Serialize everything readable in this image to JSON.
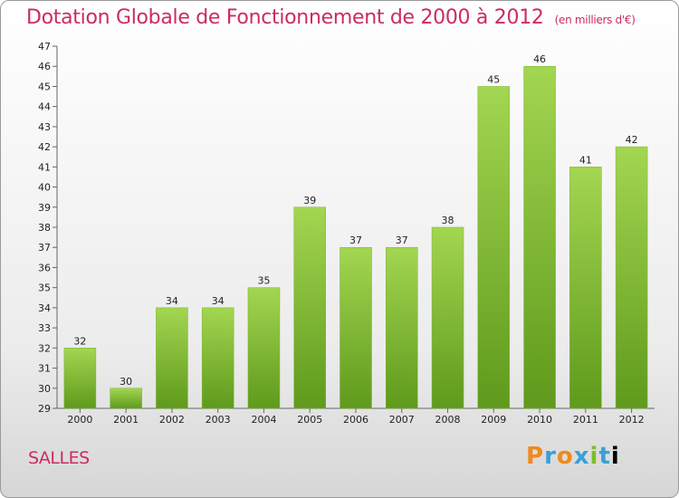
{
  "chart_data": {
    "type": "bar",
    "title": "Dotation Globale de Fonctionnement de 2000 à 2012",
    "subtitle": "(en milliers d'€)",
    "categories": [
      "2000",
      "2001",
      "2002",
      "2003",
      "2004",
      "2005",
      "2006",
      "2007",
      "2008",
      "2009",
      "2010",
      "2011",
      "2012"
    ],
    "values": [
      32,
      30,
      34,
      34,
      35,
      39,
      37,
      37,
      38,
      45,
      46,
      41,
      42
    ],
    "ylim": [
      29,
      47
    ],
    "yticks": [
      29,
      30,
      31,
      32,
      33,
      34,
      35,
      36,
      37,
      38,
      39,
      40,
      41,
      42,
      43,
      44,
      45,
      46,
      47
    ],
    "grid": false,
    "bar_color": "#8cc43c"
  },
  "footer": {
    "commune": "SALLES",
    "brand": "Proxiti"
  }
}
